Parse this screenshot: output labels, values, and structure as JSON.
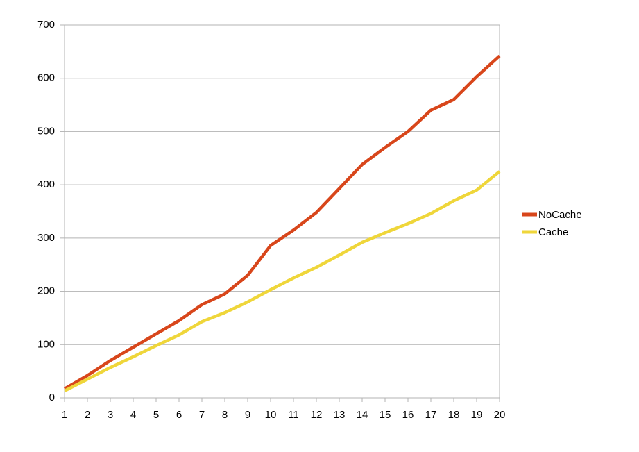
{
  "chart_data": {
    "type": "line",
    "x": [
      1,
      2,
      3,
      4,
      5,
      6,
      7,
      8,
      9,
      10,
      11,
      12,
      13,
      14,
      15,
      16,
      17,
      18,
      19,
      20
    ],
    "series": [
      {
        "name": "NoCache",
        "color": "#d8461b",
        "values": [
          17,
          42,
          70,
          95,
          120,
          145,
          175,
          195,
          230,
          286,
          315,
          348,
          393,
          438,
          470,
          500,
          540,
          560,
          603,
          642
        ]
      },
      {
        "name": "Cache",
        "color": "#efd63a",
        "values": [
          13,
          35,
          57,
          77,
          98,
          118,
          143,
          160,
          180,
          203,
          225,
          245,
          268,
          292,
          310,
          327,
          346,
          370,
          390,
          425
        ]
      }
    ],
    "xlim": [
      1,
      20
    ],
    "xticks": [
      1,
      2,
      3,
      4,
      5,
      6,
      7,
      8,
      9,
      10,
      11,
      12,
      13,
      14,
      15,
      16,
      17,
      18,
      19,
      20
    ],
    "ylim": [
      0,
      700
    ],
    "yticks": [
      0,
      100,
      200,
      300,
      400,
      500,
      600,
      700
    ],
    "grid": true,
    "legend": "right"
  }
}
